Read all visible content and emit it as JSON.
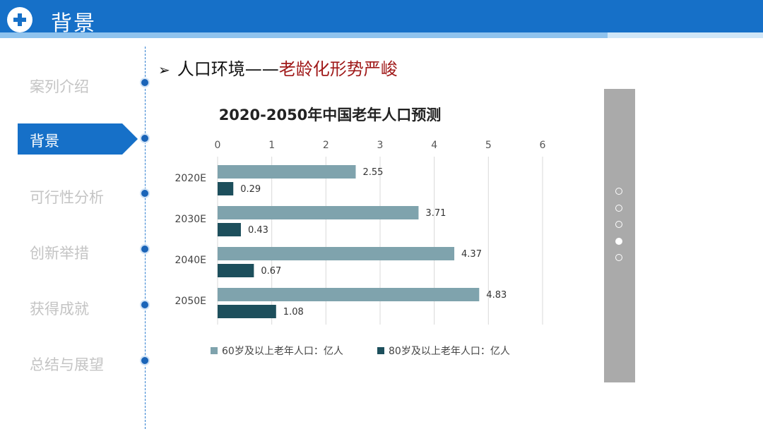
{
  "header": {
    "title": "背景"
  },
  "sidebar": {
    "items": [
      {
        "label": "案列介绍",
        "active": false
      },
      {
        "label": "背景",
        "active": true
      },
      {
        "label": "可行性分析",
        "active": false
      },
      {
        "label": "创新举措",
        "active": false
      },
      {
        "label": "获得成就",
        "active": false
      },
      {
        "label": "总结与展望",
        "active": false
      }
    ]
  },
  "content": {
    "heading_prefix": "人口环境——",
    "heading_accent": "老龄化形势严峻",
    "accent_color": "#a01a1a"
  },
  "pager": {
    "count": 5,
    "active_index": 3
  },
  "chart_data": {
    "type": "bar",
    "orientation": "horizontal",
    "title": "2020-2050年中国老年人口预测",
    "categories": [
      "2020E",
      "2030E",
      "2040E",
      "2050E"
    ],
    "series": [
      {
        "name": "60岁及以上老年人口：亿人",
        "values": [
          2.55,
          3.71,
          4.37,
          4.83
        ],
        "color": "#7fa3ad"
      },
      {
        "name": "80岁及以上老年人口：亿人",
        "values": [
          0.29,
          0.43,
          0.67,
          1.08
        ],
        "color": "#1d4f5c"
      }
    ],
    "xlim": [
      0,
      6
    ],
    "xticks": [
      "0",
      "1",
      "2",
      "3",
      "4",
      "5",
      "6"
    ],
    "xaxis_position": "top",
    "grid": true,
    "legend_position": "bottom"
  }
}
